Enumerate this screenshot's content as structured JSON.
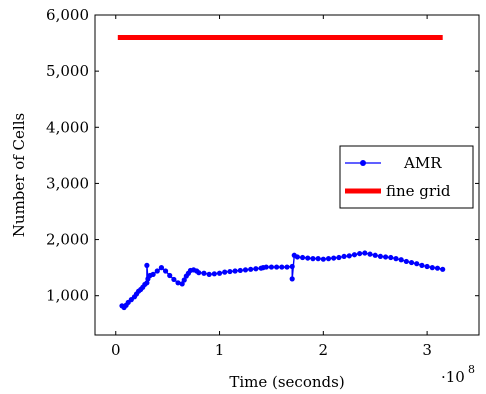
{
  "chart_data": {
    "type": "line",
    "title": "",
    "xlabel": "Time (seconds)",
    "ylabel": "Number of Cells",
    "x_multiplier_label": "·10",
    "x_multiplier_exponent": "8",
    "xlim": [
      -0.2,
      3.5
    ],
    "ylim": [
      300,
      6000
    ],
    "xticks": [
      0,
      1,
      2,
      3
    ],
    "xtick_labels": [
      "0",
      "1",
      "2",
      "3"
    ],
    "yticks": [
      1000,
      2000,
      3000,
      4000,
      5000,
      6000
    ],
    "ytick_labels": [
      "1,000",
      "2,000",
      "3,000",
      "4,000",
      "5,000",
      "6,000"
    ],
    "grid": false,
    "legend_position": "center-right",
    "series": [
      {
        "name": "AMR",
        "color": "#0000ff",
        "marker": "circle",
        "x": [
          0.06,
          0.08,
          0.1,
          0.12,
          0.15,
          0.18,
          0.2,
          0.22,
          0.24,
          0.26,
          0.28,
          0.3,
          0.3,
          0.31,
          0.33,
          0.36,
          0.4,
          0.44,
          0.48,
          0.52,
          0.56,
          0.6,
          0.64,
          0.66,
          0.68,
          0.7,
          0.72,
          0.75,
          0.78,
          0.8,
          0.85,
          0.9,
          0.95,
          1.0,
          1.05,
          1.1,
          1.15,
          1.2,
          1.25,
          1.3,
          1.35,
          1.4,
          1.42,
          1.45,
          1.5,
          1.55,
          1.6,
          1.65,
          1.7,
          1.7,
          1.72,
          1.75,
          1.8,
          1.85,
          1.9,
          1.95,
          2.0,
          2.05,
          2.1,
          2.15,
          2.2,
          2.25,
          2.3,
          2.35,
          2.4,
          2.45,
          2.5,
          2.55,
          2.6,
          2.65,
          2.7,
          2.75,
          2.8,
          2.85,
          2.9,
          2.95,
          3.0,
          3.05,
          3.1,
          3.15
        ],
        "y": [
          820,
          790,
          830,
          880,
          930,
          980,
          1030,
          1080,
          1110,
          1150,
          1200,
          1230,
          1540,
          1300,
          1360,
          1380,
          1440,
          1500,
          1440,
          1360,
          1290,
          1230,
          1210,
          1280,
          1350,
          1400,
          1450,
          1460,
          1440,
          1410,
          1400,
          1380,
          1390,
          1400,
          1420,
          1430,
          1440,
          1450,
          1460,
          1470,
          1480,
          1490,
          1500,
          1510,
          1510,
          1510,
          1510,
          1510,
          1520,
          1300,
          1720,
          1690,
          1680,
          1670,
          1660,
          1660,
          1650,
          1660,
          1670,
          1680,
          1700,
          1710,
          1730,
          1750,
          1760,
          1740,
          1720,
          1700,
          1690,
          1680,
          1660,
          1640,
          1610,
          1590,
          1570,
          1540,
          1520,
          1500,
          1490,
          1470
        ]
      },
      {
        "name": "fine grid",
        "color": "#ff0000",
        "marker": "none",
        "x": [
          0.02,
          3.15
        ],
        "y": [
          5600,
          5600
        ]
      }
    ]
  }
}
